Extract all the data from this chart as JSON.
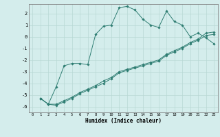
{
  "xlabel": "Humidex (Indice chaleur)",
  "background_color": "#d4edec",
  "grid_color": "#b8d8d5",
  "line_color": "#2e7d72",
  "xlim": [
    -0.5,
    23.5
  ],
  "ylim": [
    -6.5,
    2.8
  ],
  "xticks": [
    0,
    1,
    2,
    3,
    4,
    5,
    6,
    7,
    8,
    9,
    10,
    11,
    12,
    13,
    14,
    15,
    16,
    17,
    18,
    19,
    20,
    21,
    22,
    23
  ],
  "yticks": [
    -6,
    -5,
    -4,
    -3,
    -2,
    -1,
    0,
    1,
    2
  ],
  "line1_x": [
    1,
    2,
    3,
    4,
    5,
    6,
    7,
    8,
    9,
    10,
    11,
    12,
    13,
    14,
    15,
    16,
    17,
    18,
    19,
    20,
    21,
    22,
    23
  ],
  "line1_y": [
    -5.3,
    -5.8,
    -4.3,
    -2.5,
    -2.3,
    -2.3,
    -2.4,
    0.2,
    0.9,
    1.0,
    2.5,
    2.6,
    2.3,
    1.5,
    1.0,
    0.8,
    2.2,
    1.3,
    1.0,
    0.0,
    0.3,
    -0.1,
    -0.6
  ],
  "line2_x": [
    1,
    2,
    3,
    4,
    5,
    6,
    7,
    8,
    9,
    10,
    11,
    12,
    13,
    14,
    15,
    16,
    17,
    18,
    19,
    20,
    21,
    22,
    23
  ],
  "line2_y": [
    -5.3,
    -5.8,
    -5.8,
    -5.5,
    -5.2,
    -4.8,
    -4.5,
    -4.2,
    -3.8,
    -3.5,
    -3.0,
    -2.8,
    -2.6,
    -2.4,
    -2.2,
    -2.0,
    -1.5,
    -1.2,
    -0.9,
    -0.5,
    -0.2,
    0.3,
    0.4
  ],
  "line3_x": [
    1,
    2,
    3,
    4,
    5,
    6,
    7,
    8,
    9,
    10,
    11,
    12,
    13,
    14,
    15,
    16,
    17,
    18,
    19,
    20,
    21,
    22,
    23
  ],
  "line3_y": [
    -5.3,
    -5.8,
    -5.9,
    -5.6,
    -5.3,
    -4.9,
    -4.6,
    -4.3,
    -4.0,
    -3.6,
    -3.1,
    -2.9,
    -2.7,
    -2.5,
    -2.3,
    -2.1,
    -1.6,
    -1.3,
    -1.0,
    -0.6,
    -0.3,
    0.1,
    0.2
  ],
  "fig_width": 3.2,
  "fig_height": 2.0,
  "dpi": 100
}
